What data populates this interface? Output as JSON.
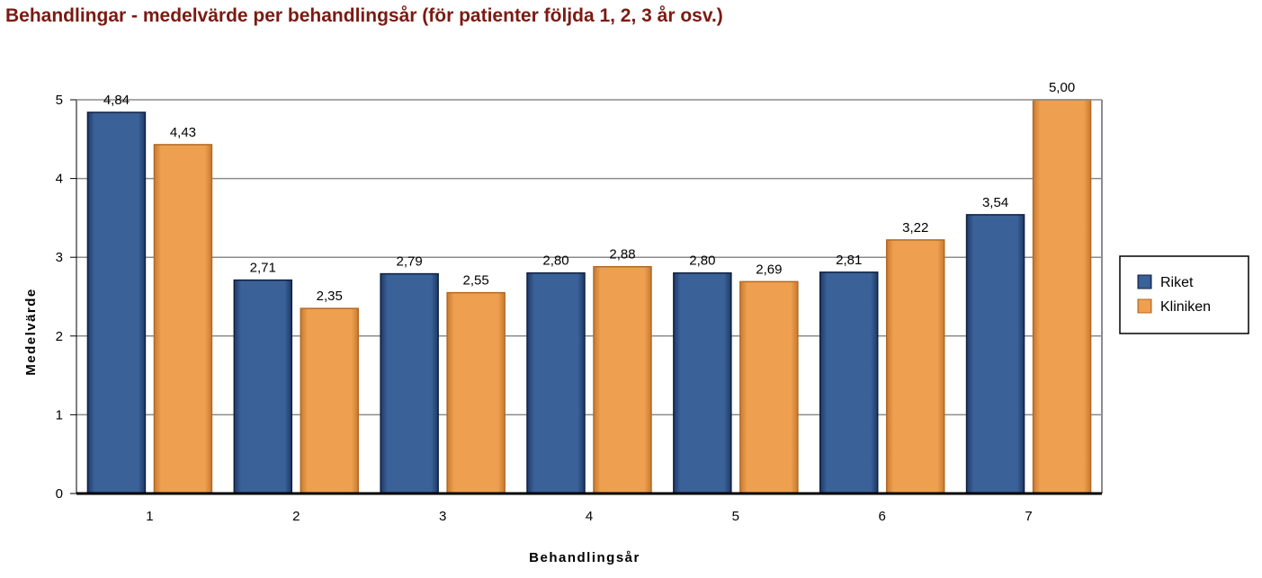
{
  "chart_data": {
    "type": "bar",
    "title": "Behandlingar - medelvärde per behandlingsår (för patienter följda 1, 2, 3 år osv.)",
    "xlabel": "Behandlingsår",
    "ylabel": "Medelvärde",
    "categories": [
      "1",
      "2",
      "3",
      "4",
      "5",
      "6",
      "7"
    ],
    "series": [
      {
        "name": "Riket",
        "values": [
          4.84,
          2.71,
          2.79,
          2.8,
          2.8,
          2.81,
          3.54
        ],
        "labels": [
          "4,84",
          "2,71",
          "2,79",
          "2,80",
          "2,80",
          "2,81",
          "3,54"
        ]
      },
      {
        "name": "Kliniken",
        "values": [
          4.43,
          2.35,
          2.55,
          2.88,
          2.69,
          3.22,
          5.0
        ],
        "labels": [
          "4,43",
          "2,35",
          "2,55",
          "2,88",
          "2,69",
          "3,22",
          "5,00"
        ]
      }
    ],
    "ylim": [
      0,
      5
    ],
    "yticks": [
      "0",
      "1",
      "2",
      "3",
      "4",
      "5"
    ],
    "grid": true,
    "legend_position": "right",
    "colors": {
      "Riket": "#3a6198",
      "Kliniken": "#eea050"
    }
  }
}
